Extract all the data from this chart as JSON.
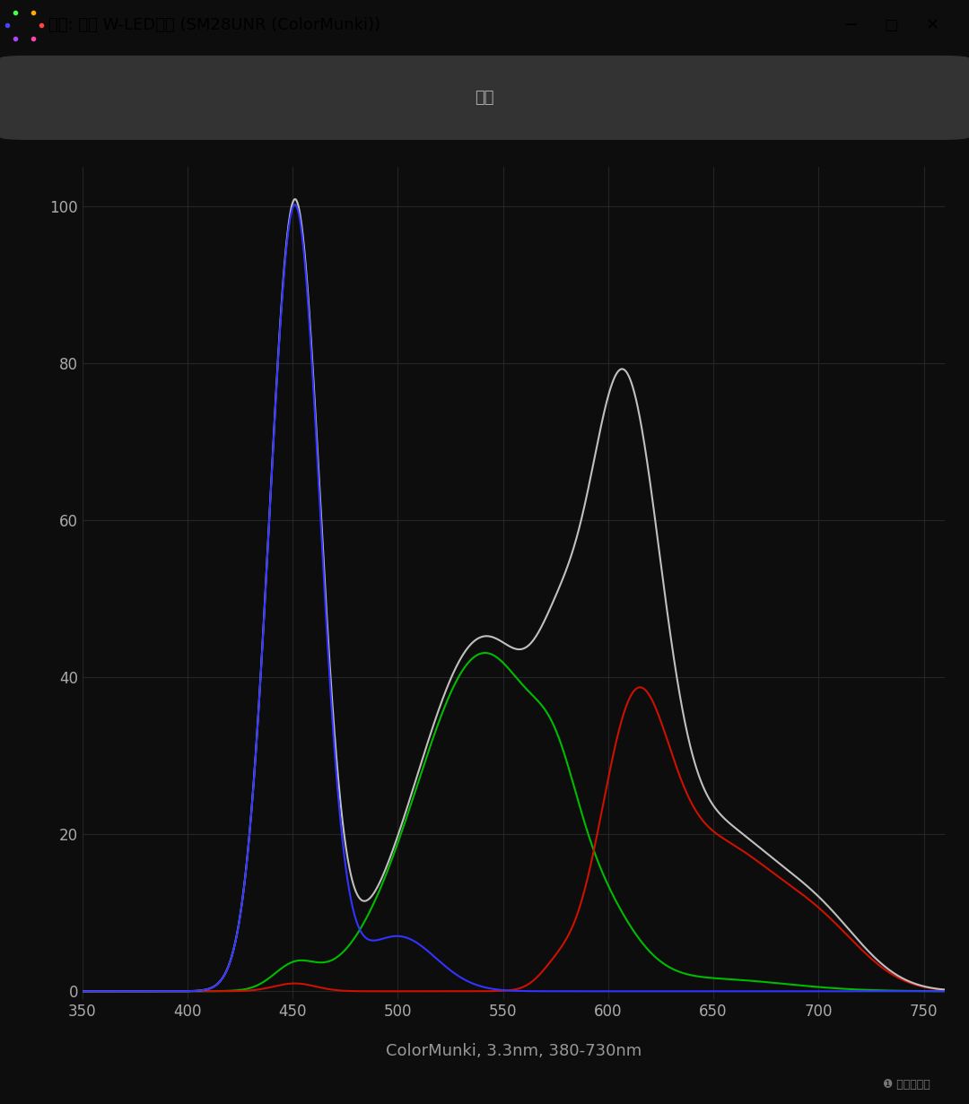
{
  "title_bar_text": "光谱: 液晶 W-LED背光 (SM28UNR (ColorMunki))",
  "tab_text": "光谱",
  "xlabel": "ColorMunki, 3.3nm, 380-730nm",
  "xlim": [
    350,
    760
  ],
  "ylim": [
    -1,
    105
  ],
  "yticks": [
    0,
    20,
    40,
    60,
    80,
    100
  ],
  "xticks": [
    350,
    400,
    450,
    500,
    550,
    600,
    650,
    700,
    750
  ],
  "bg_color": "#0d0d0d",
  "title_bar_bg": "#ffffff",
  "plot_bg": "#0d0d0d",
  "grid_color": "#252525",
  "tick_color": "#aaaaaa",
  "tab_bg": "#1a1a1a",
  "tab_rect_color": "#333333",
  "white_line_color": "#c0c0c0",
  "blue_line_color": "#3333ff",
  "green_line_color": "#00bb00",
  "red_line_color": "#cc1100",
  "xlabel_color": "#999999",
  "line_width": 1.5,
  "title_fontsize": 13,
  "tab_fontsize": 13,
  "tick_fontsize": 12,
  "xlabel_fontsize": 13
}
